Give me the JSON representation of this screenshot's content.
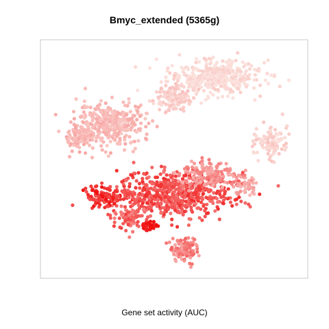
{
  "chart_data": {
    "type": "scatter",
    "title": "Bmyc_extended (5365g)",
    "xlabel": "Gene set activity (AUC)",
    "ylabel": "",
    "axes_visible": false,
    "grid": false,
    "legend": "none",
    "color_scale": {
      "low": "#fbe1dc",
      "mid": "#f7a4a2",
      "high": "#f01010",
      "meaning": "Gene set activity (AUC)"
    },
    "clusters": [
      {
        "cx": 0.66,
        "cy": 0.87,
        "sx": 0.15,
        "sy": 0.065,
        "n": 380,
        "activity": 0.05
      },
      {
        "cx": 0.49,
        "cy": 0.78,
        "sx": 0.07,
        "sy": 0.05,
        "n": 140,
        "activity": 0.15
      },
      {
        "cx": 0.25,
        "cy": 0.66,
        "sx": 0.11,
        "sy": 0.075,
        "n": 360,
        "activity": 0.33
      },
      {
        "cx": 0.12,
        "cy": 0.6,
        "sx": 0.045,
        "sy": 0.05,
        "n": 90,
        "activity": 0.36
      },
      {
        "cx": 0.89,
        "cy": 0.58,
        "sx": 0.05,
        "sy": 0.06,
        "n": 110,
        "activity": 0.12
      },
      {
        "cx": 0.78,
        "cy": 0.38,
        "sx": 0.04,
        "sy": 0.04,
        "n": 45,
        "activity": 0.45
      },
      {
        "cx": 0.5,
        "cy": 0.34,
        "sx": 0.18,
        "sy": 0.085,
        "n": 620,
        "activity": 0.78
      },
      {
        "cx": 0.33,
        "cy": 0.24,
        "sx": 0.06,
        "sy": 0.05,
        "n": 80,
        "activity": 0.72
      },
      {
        "cx": 0.22,
        "cy": 0.33,
        "sx": 0.06,
        "sy": 0.035,
        "n": 110,
        "activity": 0.9
      },
      {
        "cx": 0.4,
        "cy": 0.2,
        "sx": 0.03,
        "sy": 0.02,
        "n": 40,
        "activity": 0.97
      },
      {
        "cx": 0.54,
        "cy": 0.1,
        "sx": 0.04,
        "sy": 0.045,
        "n": 120,
        "activity": 0.6
      },
      {
        "cx": 0.64,
        "cy": 0.43,
        "sx": 0.1,
        "sy": 0.05,
        "n": 160,
        "activity": 0.55
      }
    ]
  }
}
